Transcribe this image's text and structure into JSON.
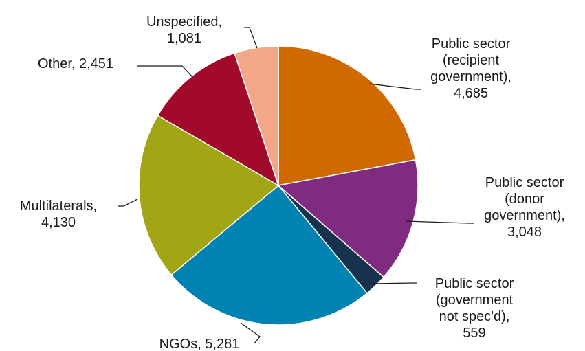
{
  "chart_data": {
    "type": "pie",
    "title": "",
    "slices": [
      {
        "label_lines": [
          "Public sector",
          "(recipient",
          "government),",
          "4,685"
        ],
        "value": 4685,
        "color": "#D06A00"
      },
      {
        "label_lines": [
          "Public sector",
          "(donor",
          "government),",
          "3,048"
        ],
        "value": 3048,
        "color": "#7F2C80"
      },
      {
        "label_lines": [
          "Public sector",
          "(government",
          "not spec'd),",
          "559"
        ],
        "value": 559,
        "color": "#17324D"
      },
      {
        "label_lines": [
          "NGOs, 5,281"
        ],
        "value": 5281,
        "color": "#0082B3"
      },
      {
        "label_lines": [
          "Multilaterals,",
          "4,130"
        ],
        "value": 4130,
        "color": "#A2A614"
      },
      {
        "label_lines": [
          "Other, 2,451"
        ],
        "value": 2451,
        "color": "#A10A2A"
      },
      {
        "label_lines": [
          "Unspecified,",
          "1,081"
        ],
        "value": 1081,
        "color": "#F2A787"
      }
    ]
  }
}
